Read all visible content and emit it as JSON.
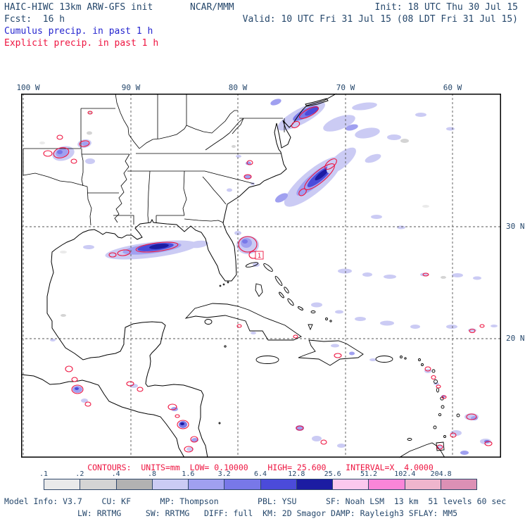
{
  "colors": {
    "text": "#25476b",
    "cumulus": "#2525cf",
    "explicit": "#ee1440"
  },
  "header": {
    "title": "HAIC-HIWC 13km ARW-GFS init",
    "org": "NCAR/MMM",
    "init": "Init: 18 UTC Thu 30 Jul 15",
    "fcst": "Fcst:  16 h",
    "valid": "Valid: 10 UTC Fri 31 Jul 15 (08 LDT Fri 31 Jul 15)",
    "field_cumulus": "Cumulus precip. in past 1 h",
    "field_explicit": "Explicit precip. in past 1 h"
  },
  "map": {
    "lon_labels": [
      "100 W",
      "90 W",
      "80 W",
      "70 W",
      "60 W"
    ],
    "lat_labels": [
      "30 N",
      "20 N"
    ],
    "contour_label": "1"
  },
  "legend": {
    "contours_info": "CONTOURS:  UNITS=mm  LOW= 0.10000    HIGH= 25.600    INTERVAL=X  4.0000",
    "ticks": [
      ".1",
      ".2",
      ".4",
      ".8",
      "1.6",
      "3.2",
      "6.4",
      "12.8",
      "25.6",
      "51.2",
      "102.4",
      "204.8"
    ],
    "cell_colors": [
      "#eaeaea",
      "#d4d4d4",
      "#b2b2b2",
      "#cbcbf4",
      "#a0a0f0",
      "#7878e8",
      "#4b4bda",
      "#1c1ca2",
      "#fbc8ee",
      "#fa85d8",
      "#efb5cd",
      "#dc90b5"
    ]
  },
  "footer": {
    "line1": "Model Info: V3.7    CU: KF      MP: Thompson        PBL: YSU      SF: Noah LSM  13 km  51 levels 60 sec",
    "line2": "LW: RRTMG     SW: RRTMG   DIFF: full  KM: 2D Smagor DAMP: Rayleigh3 SFLAY: MM5"
  }
}
